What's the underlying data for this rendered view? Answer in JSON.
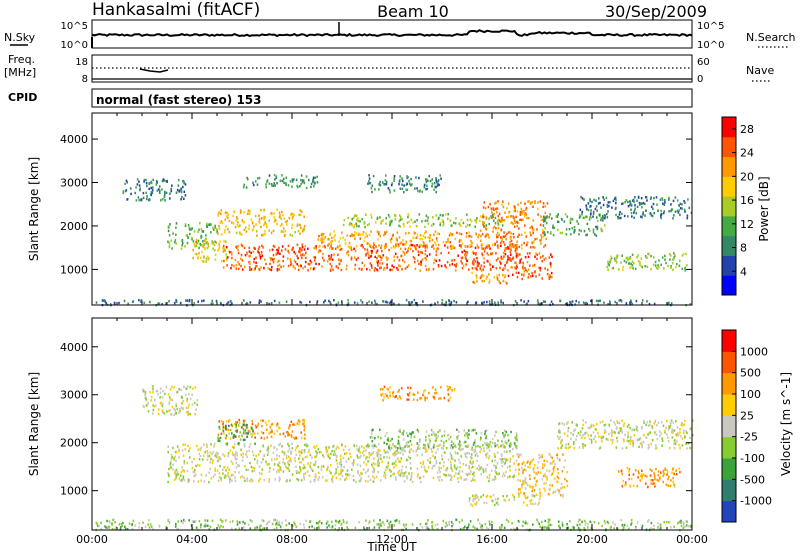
{
  "header": {
    "station": "Hankasalmi (fitACF)",
    "beam": "Beam 10",
    "date": "30/Sep/2009"
  },
  "top_panels": {
    "nsky_label": "N.Sky",
    "nsky_ticks": [
      "10^5",
      "10^0"
    ],
    "nsearch_label": "N.Search",
    "nsearch_ticks": [
      "10^5",
      "10^0"
    ],
    "freq_label": "Freq.",
    "freq_unit": "[MHz]",
    "freq_ticks": [
      "18",
      "8"
    ],
    "nave_label": "Nave",
    "nave_ticks": [
      "60",
      "0"
    ],
    "cpid_label": "CPID",
    "cpid_text": "normal (fast stereo) 153"
  },
  "chart_data": [
    {
      "type": "heatmap",
      "name": "power",
      "ylabel": "Slant Range [km]",
      "xlabel": "",
      "x_ticks": [
        "00:00",
        "04:00",
        "08:00",
        "12:00",
        "16:00",
        "20:00",
        "00:00"
      ],
      "x_range_hours": [
        0,
        24
      ],
      "ylim": [
        180,
        4600
      ],
      "y_ticks": [
        "1000",
        "2000",
        "3000",
        "4000"
      ],
      "y_tick_values": [
        1000,
        2000,
        3000,
        4000
      ],
      "colorbar": {
        "label": "Power [dB]",
        "ticks": [
          "28",
          "24",
          "20",
          "16",
          "12",
          "8",
          "4"
        ],
        "tick_values": [
          28,
          24,
          20,
          16,
          12,
          8,
          4
        ],
        "range": [
          0,
          30
        ],
        "colors": [
          "#0000ff",
          "#2244aa",
          "#338866",
          "#44aa44",
          "#aacc22",
          "#ffcc00",
          "#ff9900",
          "#ff5500",
          "#ff0000"
        ]
      },
      "regions": [
        {
          "t": [
            0.1,
            24
          ],
          "r": [
            200,
            320
          ],
          "level": 6
        },
        {
          "t": [
            1.2,
            3.8
          ],
          "r": [
            2600,
            3100
          ],
          "level": 7
        },
        {
          "t": [
            3.0,
            5.0
          ],
          "r": [
            1500,
            2100
          ],
          "level": 12
        },
        {
          "t": [
            4.0,
            5.4
          ],
          "r": [
            1200,
            1700
          ],
          "level": 18
        },
        {
          "t": [
            5.0,
            8.5
          ],
          "r": [
            1800,
            2400
          ],
          "level": 20
        },
        {
          "t": [
            5.2,
            17.0
          ],
          "r": [
            1000,
            1600
          ],
          "level": 26
        },
        {
          "t": [
            9.0,
            15.5
          ],
          "r": [
            1500,
            1900
          ],
          "level": 22
        },
        {
          "t": [
            10.0,
            16.5
          ],
          "r": [
            2000,
            2300
          ],
          "level": 14
        },
        {
          "t": [
            15.5,
            18.2
          ],
          "r": [
            1500,
            2600
          ],
          "level": 24
        },
        {
          "t": [
            16.6,
            18.4
          ],
          "r": [
            800,
            1400
          ],
          "level": 26
        },
        {
          "t": [
            15.0,
            16.6
          ],
          "r": [
            700,
            950
          ],
          "level": 22
        },
        {
          "t": [
            18.0,
            20.5
          ],
          "r": [
            1800,
            2300
          ],
          "level": 10
        },
        {
          "t": [
            19.5,
            24
          ],
          "r": [
            2200,
            2700
          ],
          "level": 7
        },
        {
          "t": [
            20.5,
            23.8
          ],
          "r": [
            1000,
            1400
          ],
          "level": 14
        },
        {
          "t": [
            11.0,
            14.0
          ],
          "r": [
            2800,
            3200
          ],
          "level": 8
        },
        {
          "t": [
            6.0,
            9.0
          ],
          "r": [
            2900,
            3200
          ],
          "level": 9
        }
      ]
    },
    {
      "type": "heatmap",
      "name": "velocity",
      "ylabel": "Slant Range [km]",
      "xlabel": "Time UT",
      "x_ticks": [
        "00:00",
        "04:00",
        "08:00",
        "12:00",
        "16:00",
        "20:00",
        "00:00"
      ],
      "x_range_hours": [
        0,
        24
      ],
      "ylim": [
        180,
        4600
      ],
      "y_ticks": [
        "1000",
        "2000",
        "3000",
        "4000"
      ],
      "y_tick_values": [
        1000,
        2000,
        3000,
        4000
      ],
      "colorbar": {
        "label": "Velocity [m s^-1]",
        "ticks": [
          "1000",
          "500",
          "100",
          "25",
          "-25",
          "-100",
          "-500",
          "-1000"
        ],
        "colors": [
          "#2244bb",
          "#2e7d6e",
          "#3aa33a",
          "#88cc33",
          "#c8c8c0",
          "#ffcc00",
          "#ff9900",
          "#ff5500",
          "#ff0000"
        ]
      },
      "regions": [
        {
          "t": [
            0.1,
            24
          ],
          "r": [
            200,
            420
          ],
          "level": 3
        },
        {
          "t": [
            2.0,
            4.2
          ],
          "r": [
            2600,
            3200
          ],
          "level": 4
        },
        {
          "t": [
            3.0,
            17.0
          ],
          "r": [
            1200,
            2000
          ],
          "level": 4
        },
        {
          "t": [
            5.0,
            8.5
          ],
          "r": [
            2100,
            2500
          ],
          "level": 6
        },
        {
          "t": [
            11.0,
            17.0
          ],
          "r": [
            1900,
            2300
          ],
          "level": 3
        },
        {
          "t": [
            11.5,
            14.5
          ],
          "r": [
            2900,
            3200
          ],
          "level": 6
        },
        {
          "t": [
            17.0,
            19.0
          ],
          "r": [
            900,
            1800
          ],
          "level": 5
        },
        {
          "t": [
            15.0,
            18.0
          ],
          "r": [
            700,
            950
          ],
          "level": 4
        },
        {
          "t": [
            18.5,
            24
          ],
          "r": [
            1900,
            2500
          ],
          "level": 4
        },
        {
          "t": [
            21.0,
            23.5
          ],
          "r": [
            1100,
            1500
          ],
          "level": 6
        },
        {
          "t": [
            5.0,
            6.5
          ],
          "r": [
            2000,
            2400
          ],
          "level": 2
        }
      ]
    }
  ]
}
